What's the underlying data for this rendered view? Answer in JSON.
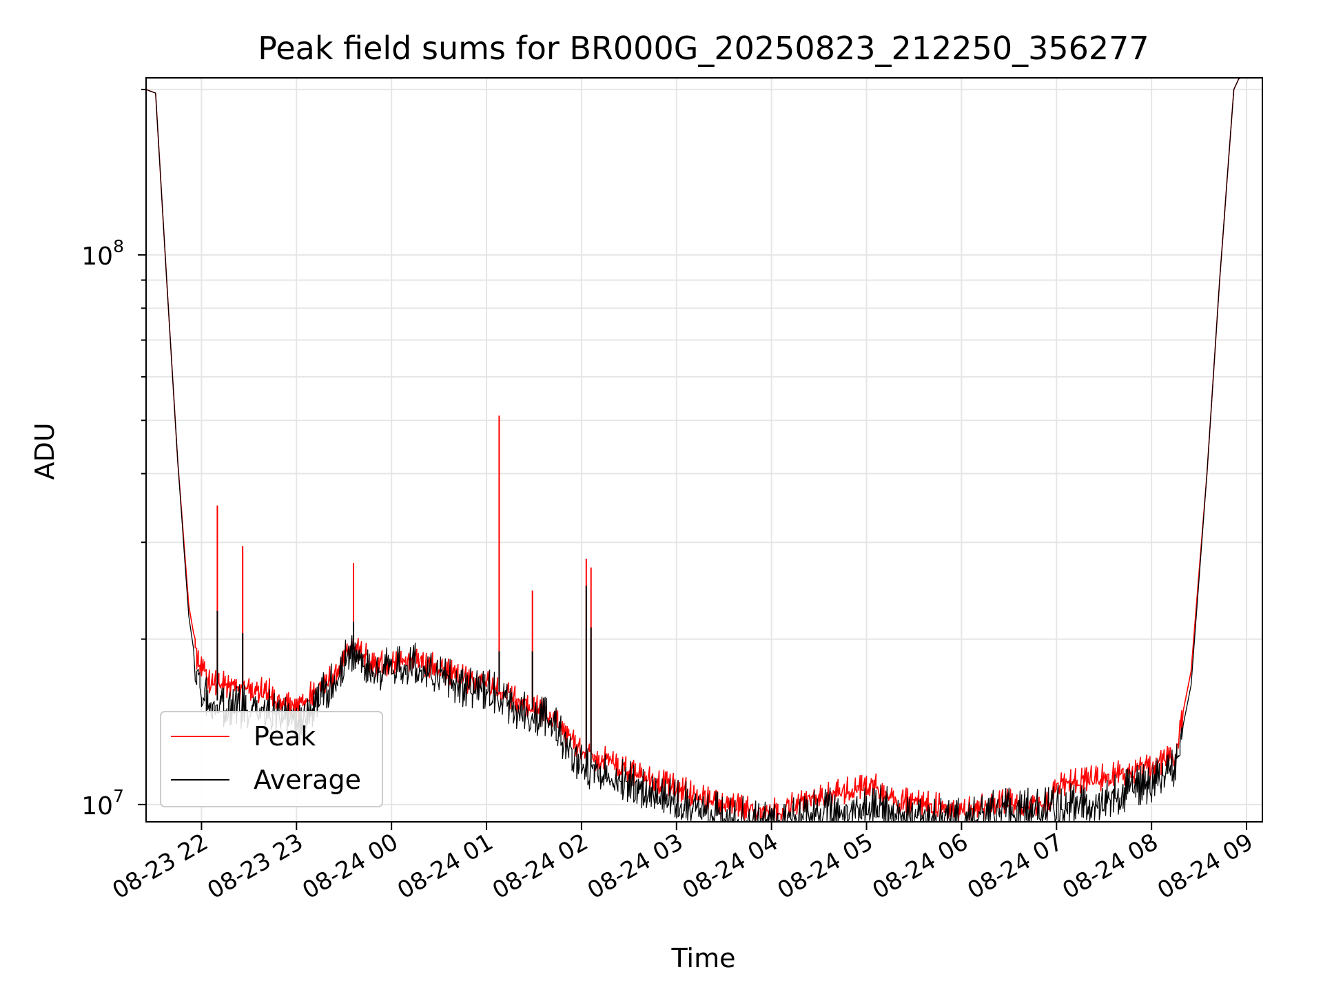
{
  "chart_data": {
    "type": "line",
    "title": "Peak field sums for BR000G_20250823_212250_356277",
    "xlabel": "Time",
    "ylabel": "ADU",
    "yscale": "log",
    "ylim": [
      9300000,
      210000000
    ],
    "xlim": [
      "2025-08-23 21:25",
      "2025-08-24 09:10"
    ],
    "grid": true,
    "legend_position": "lower-left",
    "x_ticks": [
      {
        "t": "2025-08-23 22:00",
        "label": "08-23 22"
      },
      {
        "t": "2025-08-23 23:00",
        "label": "08-23 23"
      },
      {
        "t": "2025-08-24 00:00",
        "label": "08-24 00"
      },
      {
        "t": "2025-08-24 01:00",
        "label": "08-24 01"
      },
      {
        "t": "2025-08-24 02:00",
        "label": "08-24 02"
      },
      {
        "t": "2025-08-24 03:00",
        "label": "08-24 03"
      },
      {
        "t": "2025-08-24 04:00",
        "label": "08-24 04"
      },
      {
        "t": "2025-08-24 05:00",
        "label": "08-24 05"
      },
      {
        "t": "2025-08-24 06:00",
        "label": "08-24 06"
      },
      {
        "t": "2025-08-24 07:00",
        "label": "08-24 07"
      },
      {
        "t": "2025-08-24 08:00",
        "label": "08-24 08"
      },
      {
        "t": "2025-08-24 09:00",
        "label": "08-24 09"
      }
    ],
    "y_major_ticks": [
      {
        "value": 10000000,
        "base": "10",
        "exp": "7"
      },
      {
        "value": 100000000,
        "base": "10",
        "exp": "8"
      }
    ],
    "series": [
      {
        "name": "Peak",
        "color": "#ff0000",
        "points": [
          [
            "2025-08-23 21:25",
            200000000
          ],
          [
            "2025-08-23 21:31",
            197000000
          ],
          [
            "2025-08-23 21:38",
            90000000
          ],
          [
            "2025-08-23 21:45",
            42000000
          ],
          [
            "2025-08-23 21:52",
            23000000
          ],
          [
            "2025-08-23 21:57",
            19000000
          ],
          [
            "2025-08-23 22:05",
            17000000
          ],
          [
            "2025-08-23 22:20",
            16600000
          ],
          [
            "2025-08-23 22:40",
            16400000
          ],
          [
            "2025-08-23 23:00",
            15300000
          ],
          [
            "2025-08-23 23:20",
            17000000
          ],
          [
            "2025-08-23 23:35",
            19700000
          ],
          [
            "2025-08-23 23:50",
            18300000
          ],
          [
            "2025-08-24 00:15",
            18700000
          ],
          [
            "2025-08-24 00:45",
            17200000
          ],
          [
            "2025-08-24 01:00",
            17000000
          ],
          [
            "2025-08-24 01:20",
            15700000
          ],
          [
            "2025-08-24 01:40",
            14800000
          ],
          [
            "2025-08-24 02:00",
            12600000
          ],
          [
            "2025-08-24 02:15",
            12300000
          ],
          [
            "2025-08-24 02:45",
            11200000
          ],
          [
            "2025-08-24 03:00",
            10900000
          ],
          [
            "2025-08-24 03:30",
            10100000
          ],
          [
            "2025-08-24 04:00",
            9900000
          ],
          [
            "2025-08-24 04:30",
            10500000
          ],
          [
            "2025-08-24 05:05",
            11000000
          ],
          [
            "2025-08-24 05:20",
            10300000
          ],
          [
            "2025-08-24 05:45",
            10100000
          ],
          [
            "2025-08-24 06:00",
            9900000
          ],
          [
            "2025-08-24 06:30",
            10300000
          ],
          [
            "2025-08-24 06:55",
            10100000
          ],
          [
            "2025-08-24 07:00",
            11000000
          ],
          [
            "2025-08-24 07:30",
            11400000
          ],
          [
            "2025-08-24 08:00",
            11900000
          ],
          [
            "2025-08-24 08:15",
            12500000
          ],
          [
            "2025-08-24 08:25",
            17500000
          ],
          [
            "2025-08-24 08:35",
            40000000
          ],
          [
            "2025-08-24 08:43",
            90000000
          ],
          [
            "2025-08-24 08:52",
            200000000
          ],
          [
            "2025-08-24 08:57",
            215000000
          ]
        ],
        "spikes": [
          [
            "2025-08-23 22:10",
            35000000
          ],
          [
            "2025-08-23 22:26",
            29500000
          ],
          [
            "2025-08-23 23:36",
            27500000
          ],
          [
            "2025-08-24 01:08",
            51000000
          ],
          [
            "2025-08-24 01:29",
            24500000
          ],
          [
            "2025-08-24 02:03",
            28000000
          ],
          [
            "2025-08-24 02:06",
            27000000
          ]
        ]
      },
      {
        "name": "Average",
        "color": "#000000",
        "points": [
          [
            "2025-08-23 21:25",
            200000000
          ],
          [
            "2025-08-23 21:31",
            197000000
          ],
          [
            "2025-08-23 21:38",
            90000000
          ],
          [
            "2025-08-23 21:45",
            42000000
          ],
          [
            "2025-08-23 21:52",
            22000000
          ],
          [
            "2025-08-23 21:57",
            17500000
          ],
          [
            "2025-08-23 22:05",
            15500000
          ],
          [
            "2025-08-23 22:20",
            15400000
          ],
          [
            "2025-08-23 22:40",
            15200000
          ],
          [
            "2025-08-23 23:00",
            14200000
          ],
          [
            "2025-08-23 23:20",
            16500000
          ],
          [
            "2025-08-23 23:35",
            19300000
          ],
          [
            "2025-08-23 23:50",
            17800000
          ],
          [
            "2025-08-24 00:15",
            18300000
          ],
          [
            "2025-08-24 00:45",
            16800000
          ],
          [
            "2025-08-24 01:00",
            16600000
          ],
          [
            "2025-08-24 01:20",
            15200000
          ],
          [
            "2025-08-24 01:40",
            14500000
          ],
          [
            "2025-08-24 02:00",
            12000000
          ],
          [
            "2025-08-24 02:15",
            11700000
          ],
          [
            "2025-08-24 02:45",
            10700000
          ],
          [
            "2025-08-24 03:00",
            10400000
          ],
          [
            "2025-08-24 03:30",
            9700000
          ],
          [
            "2025-08-24 04:00",
            9500000
          ],
          [
            "2025-08-24 04:30",
            9900000
          ],
          [
            "2025-08-24 05:05",
            10300000
          ],
          [
            "2025-08-24 05:20",
            9800000
          ],
          [
            "2025-08-24 05:45",
            9600000
          ],
          [
            "2025-08-24 06:00",
            9600000
          ],
          [
            "2025-08-24 06:30",
            10000000
          ],
          [
            "2025-08-24 06:55",
            10000000
          ],
          [
            "2025-08-24 07:00",
            10100000
          ],
          [
            "2025-08-24 07:30",
            10500000
          ],
          [
            "2025-08-24 08:00",
            11100000
          ],
          [
            "2025-08-24 08:15",
            11800000
          ],
          [
            "2025-08-24 08:25",
            16500000
          ],
          [
            "2025-08-24 08:35",
            40000000
          ],
          [
            "2025-08-24 08:43",
            90000000
          ],
          [
            "2025-08-24 08:52",
            200000000
          ],
          [
            "2025-08-24 08:57",
            215000000
          ]
        ],
        "spikes": [
          [
            "2025-08-23 22:10",
            22500000
          ],
          [
            "2025-08-23 22:26",
            20500000
          ],
          [
            "2025-08-23 23:36",
            21500000
          ],
          [
            "2025-08-24 01:08",
            19000000
          ],
          [
            "2025-08-24 01:29",
            19000000
          ],
          [
            "2025-08-24 02:03",
            25000000
          ],
          [
            "2025-08-24 02:06",
            21000000
          ]
        ]
      }
    ]
  }
}
